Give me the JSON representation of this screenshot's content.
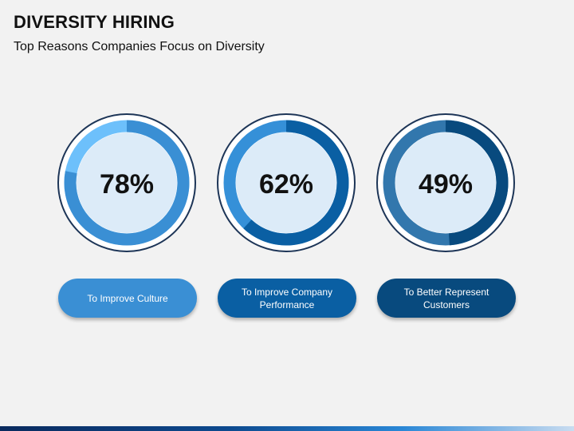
{
  "slide": {
    "title": "DIVERSITY HIRING",
    "subtitle": "Top Reasons Companies Focus on Diversity"
  },
  "colors": {
    "background": "#f2f2f2",
    "outline": "#1d3557",
    "gauge_fill": "#dcebf8",
    "text": "#111111"
  },
  "chart_data": {
    "type": "pie",
    "subtype": "donut-gauge",
    "title": "Top Reasons Companies Focus on Diversity",
    "series": [
      {
        "name": "To Improve Culture",
        "value": 78,
        "label": "78%",
        "color": "#3a8fd4",
        "track_color": "#6dc0fb"
      },
      {
        "name": "To Improve Company Performance",
        "value": 62,
        "label": "62%",
        "color": "#0a5fa3",
        "track_color": "#3590d8"
      },
      {
        "name": "To Better Represent Customers",
        "value": 49,
        "label": "49%",
        "color": "#084a7e",
        "track_color": "#3277ad"
      }
    ]
  }
}
